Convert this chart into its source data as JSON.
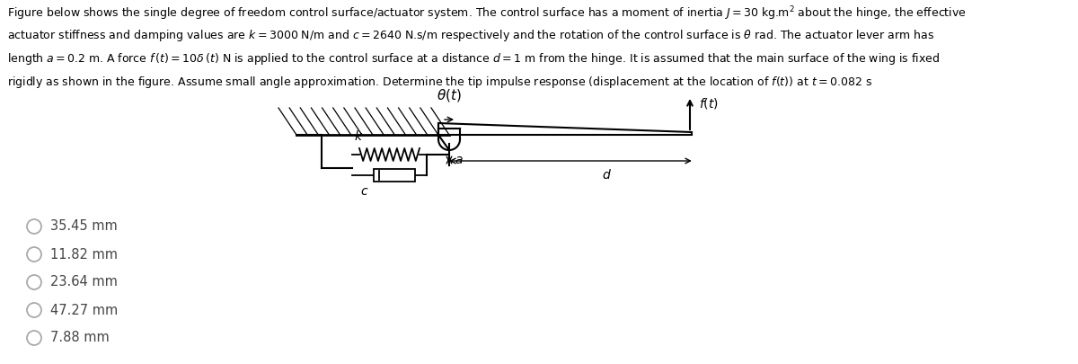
{
  "paragraph_lines": [
    "Figure below shows the single degree of freedom control surface/actuator system. The control surface has a moment of inertia $J = 30$ kg.m$^2$ about the hinge, the effective",
    "actuator stiffness and damping values are $k = 3000$ N/m and $c = 2640$ N.s/m respectively and the rotation of the control surface is $\\theta$ rad. The actuator lever arm has",
    "length $a = 0.2$ m. A force $f\\,(t) = 10\\delta\\,(t)$ N is applied to the control surface at a distance $d = 1$ m from the hinge. It is assumed that the main surface of the wing is fixed",
    "rigidly as shown in the figure. Assume small angle approximation. Determine the tip impulse response (displacement at the location of $f(t)$) at $t = 0.082$ s"
  ],
  "choices": [
    "35.45 mm",
    "11.82 mm",
    "23.64 mm",
    "47.27 mm",
    "7.88 mm"
  ],
  "bg_color": "#ffffff",
  "text_color": "#000000",
  "choice_text_color": "#444444"
}
